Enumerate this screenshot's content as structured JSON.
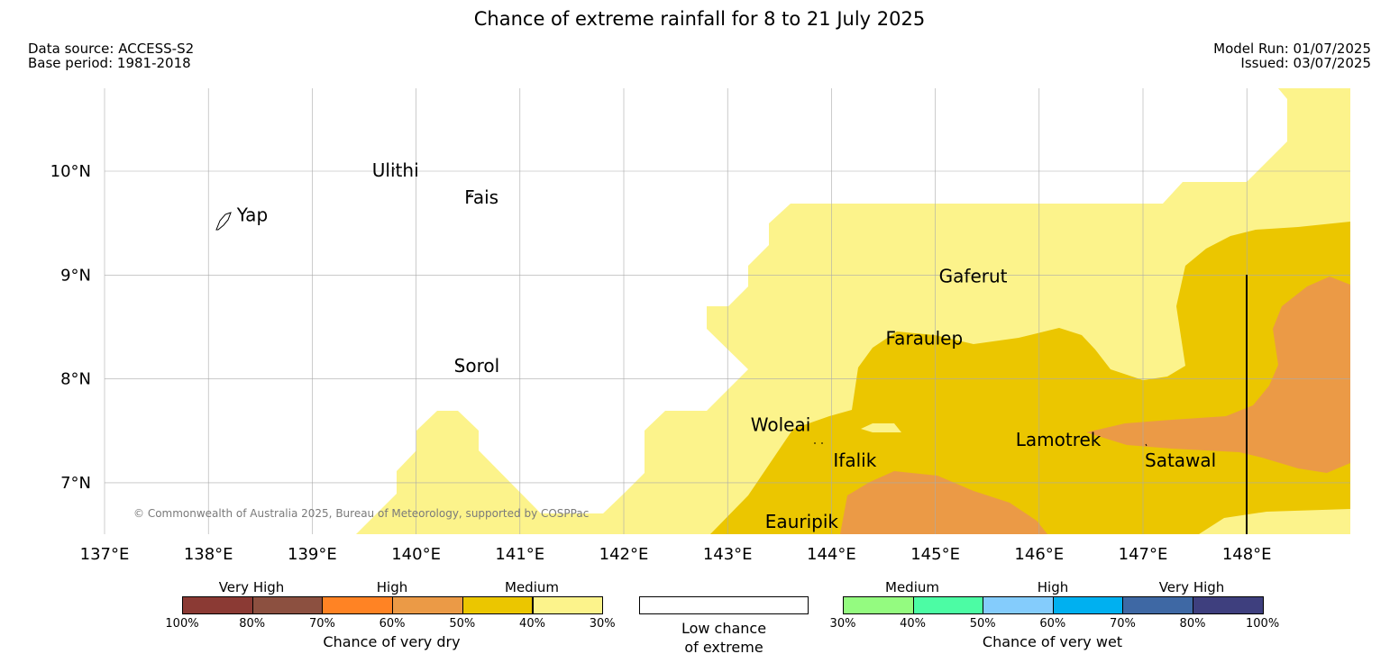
{
  "title": "Chance of extreme rainfall for 8 to 21 July 2025",
  "data_source": "Data source: ACCESS-S2",
  "base_period": "Base period: 1981-2018",
  "model_run": "Model Run: 01/07/2025",
  "issued": "Issued: 03/07/2025",
  "copyright": "© Commonwealth of Australia 2025, Bureau of Meteorology, supported by COSPPac",
  "axes": {
    "lon_labels": [
      "137°E",
      "138°E",
      "139°E",
      "140°E",
      "141°E",
      "142°E",
      "143°E",
      "144°E",
      "145°E",
      "146°E",
      "147°E",
      "148°E"
    ],
    "lat_labels": [
      "10°N",
      "9°N",
      "8°N",
      "7°N"
    ],
    "lon_range": [
      137,
      149
    ],
    "lat_range": [
      6.5,
      10.8
    ]
  },
  "places": [
    {
      "name": "Yap",
      "lon": 138.1,
      "lat": 9.5
    },
    {
      "name": "Ulithi",
      "lon": 139.75,
      "lat": 10.0
    },
    {
      "name": "Fais",
      "lon": 140.5,
      "lat": 9.75
    },
    {
      "name": "Sorol",
      "lon": 140.4,
      "lat": 8.1
    },
    {
      "name": "Gaferut",
      "lon": 145.4,
      "lat": 9.0
    },
    {
      "name": "Faraulep",
      "lon": 144.6,
      "lat": 8.4
    },
    {
      "name": "Woleai",
      "lon": 143.3,
      "lat": 7.5
    },
    {
      "name": "Ifalik",
      "lon": 144.0,
      "lat": 7.2
    },
    {
      "name": "Lamotrek",
      "lon": 145.8,
      "lat": 7.4
    },
    {
      "name": "Satawal",
      "lon": 147.0,
      "lat": 7.2
    },
    {
      "name": "Eauripik",
      "lon": 143.5,
      "lat": 6.6
    }
  ],
  "colors": {
    "dry_very_high_1": "#8b3a34",
    "dry_very_high_2": "#8c5040",
    "dry_high_1": "#ff8324",
    "dry_high_2": "#eb9a46",
    "dry_medium_1": "#ebc600",
    "dry_medium_2": "#fcf38b",
    "wet_medium_1": "#94fb80",
    "wet_medium_2": "#4cfca4",
    "wet_high_1": "#84ccfc",
    "wet_high_2": "#00b0f0",
    "wet_very_high_1": "#3e68a4",
    "wet_very_high_2": "#3e3f7e",
    "grid": "#aaaaaa"
  },
  "legend": {
    "dry": {
      "categories": [
        "Very High",
        "High",
        "Medium"
      ],
      "ticks": [
        "100%",
        "80%",
        "70%",
        "60%",
        "50%",
        "40%",
        "30%"
      ],
      "title": "Chance of very dry"
    },
    "low": {
      "line1": "Low chance",
      "line2": "of extreme"
    },
    "wet": {
      "categories": [
        "Medium",
        "High",
        "Very High"
      ],
      "ticks": [
        "30%",
        "40%",
        "50%",
        "60%",
        "70%",
        "80%",
        "100%"
      ],
      "title": "Chance of very wet"
    }
  }
}
